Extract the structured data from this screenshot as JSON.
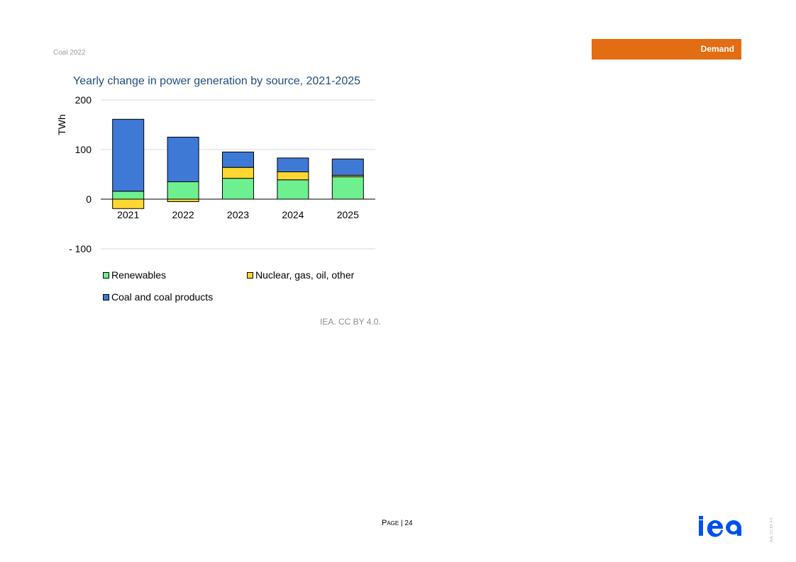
{
  "header": {
    "report": "Coal 2022",
    "section": "Demand"
  },
  "colors": {
    "accent": "#e26d12",
    "title": "#1f4e79",
    "renewables": "#6ef090",
    "nuclear_gas_oil_other": "#ffd632",
    "coal": "#3f79d6",
    "logo": "#0050f0"
  },
  "chart_data": {
    "type": "bar",
    "stacked": true,
    "title": "Yearly change in power generation by source, 2021-2025",
    "ylabel": "TWh",
    "xlabel": "",
    "ylim": [
      -100,
      200
    ],
    "yticks": [
      {
        "value": 200,
        "label": "200"
      },
      {
        "value": 100,
        "label": "100"
      },
      {
        "value": 0,
        "label": "0"
      },
      {
        "value": -100,
        "label": "- 100"
      }
    ],
    "grid": true,
    "legend_position": "bottom",
    "categories": [
      "2021",
      "2022",
      "2023",
      "2024",
      "2025"
    ],
    "series": [
      {
        "name": "Renewables",
        "values": [
          16,
          35,
          42,
          39,
          45
        ],
        "color": "#6ef090"
      },
      {
        "name": "Nuclear, gas, oil, other",
        "values": [
          -19,
          -5,
          22,
          16,
          3
        ],
        "color": "#ffd632"
      },
      {
        "name": "Coal and coal products",
        "values": [
          145,
          90,
          31,
          28,
          33
        ],
        "color": "#3f79d6"
      }
    ]
  },
  "footer": {
    "source": "IEA. CC BY 4.0.",
    "page_label": "Page",
    "page_number": "24",
    "vertical_credit": "IEA. CC BY 4.0."
  }
}
